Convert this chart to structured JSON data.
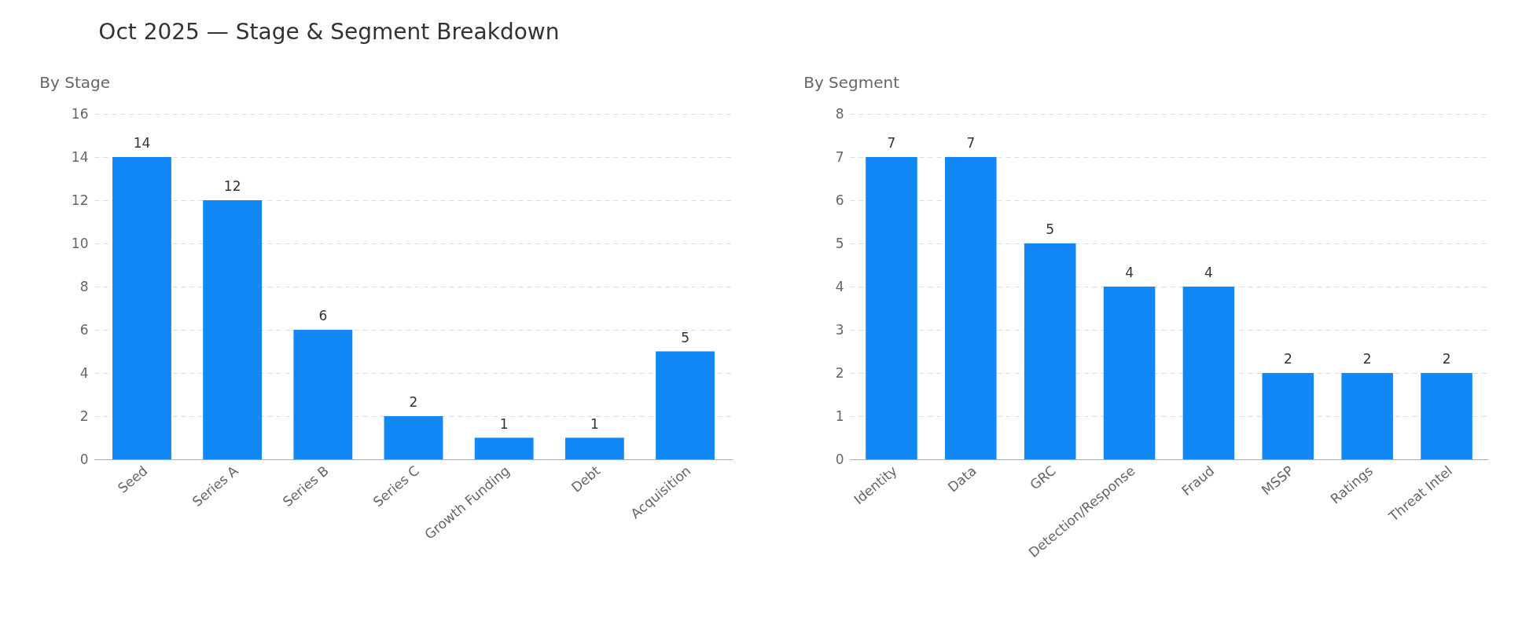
{
  "chart_data": [
    {
      "type": "bar",
      "title": "Oct 2025 — Stage & Segment Breakdown",
      "subtitle": "By Stage",
      "categories": [
        "Seed",
        "Series A",
        "Series B",
        "Series C",
        "Growth Funding",
        "Debt",
        "Acquisition"
      ],
      "values": [
        14,
        12,
        6,
        2,
        1,
        1,
        5
      ],
      "color": "#1188f5",
      "ylim": [
        0,
        16
      ],
      "yticks": [
        0,
        2,
        4,
        6,
        8,
        10,
        12,
        14,
        16
      ],
      "grid": "y",
      "data_labels": true
    },
    {
      "type": "bar",
      "subtitle": "By Segment",
      "categories": [
        "Identity",
        "Data",
        "GRC",
        "Detection/Response",
        "Fraud",
        "MSSP",
        "Ratings",
        "Threat Intel"
      ],
      "values": [
        7,
        7,
        5,
        4,
        4,
        2,
        2,
        2
      ],
      "color": "#1188f5",
      "ylim": [
        0,
        8
      ],
      "yticks": [
        0,
        1,
        2,
        3,
        4,
        5,
        6,
        7,
        8
      ],
      "grid": "y",
      "data_labels": true
    }
  ]
}
